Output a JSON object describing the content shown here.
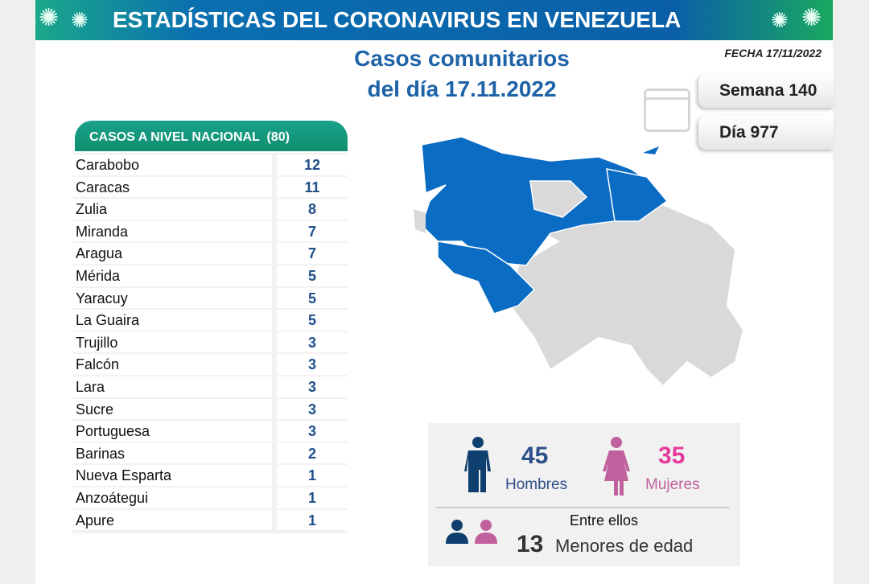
{
  "banner": {
    "title": "ESTADÍSTICAS DEL CORONAVIRUS EN VENEZUELA"
  },
  "fecha": "FECHA 17/11/2022",
  "subtitle": {
    "line1": "Casos comunitarios",
    "line2": "del día 17.11.2022"
  },
  "semana": "Semana 140",
  "dia": "Día 977",
  "table": {
    "header": "CASOS A NIVEL NACIONAL  (80)",
    "rows": [
      {
        "state": "Carabobo",
        "cases": "12"
      },
      {
        "state": "Caracas",
        "cases": "11"
      },
      {
        "state": "Zulia",
        "cases": "8"
      },
      {
        "state": "Miranda",
        "cases": "7"
      },
      {
        "state": "Aragua",
        "cases": "7"
      },
      {
        "state": "Mérida",
        "cases": "5"
      },
      {
        "state": "Yaracuy",
        "cases": "5"
      },
      {
        "state": "La Guaira",
        "cases": "5"
      },
      {
        "state": "Trujillo",
        "cases": "3"
      },
      {
        "state": "Falcón",
        "cases": "3"
      },
      {
        "state": "Lara",
        "cases": "3"
      },
      {
        "state": "Sucre",
        "cases": "3"
      },
      {
        "state": "Portuguesa",
        "cases": "3"
      },
      {
        "state": "Barinas",
        "cases": "2"
      },
      {
        "state": "Nueva Esparta",
        "cases": "1"
      },
      {
        "state": "Anzoátegui",
        "cases": "1"
      },
      {
        "state": "Apure",
        "cases": "1"
      }
    ]
  },
  "gender": {
    "men": "45",
    "men_label": "Hombres",
    "women": "35",
    "women_label": "Mujeres",
    "minors_intro": "Entre ellos",
    "minors": "13",
    "minors_label": "Menores de edad"
  },
  "colors": {
    "blue": "#0b6cc4",
    "gray": "#d9d9d9",
    "men": "#0f3f6e",
    "women": "#c0609c",
    "women_text": "#e6399b"
  }
}
